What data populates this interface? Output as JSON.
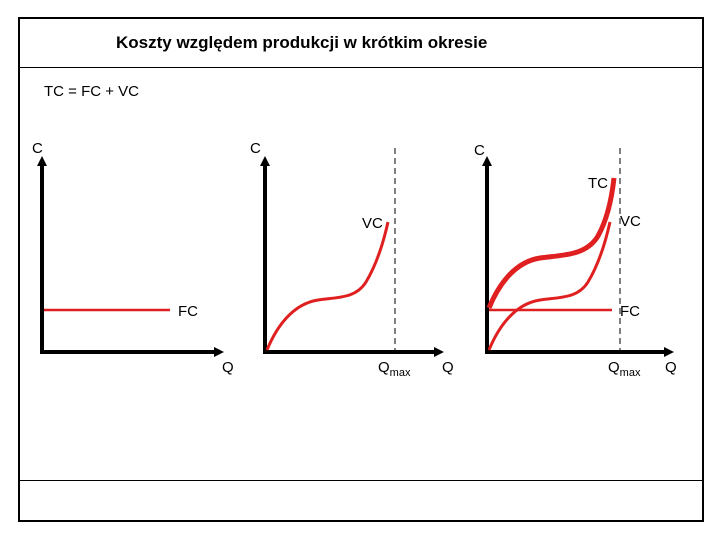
{
  "slide": {
    "title": "Koszty względem produkcji w krótkim okresie",
    "formula": "TC = FC + VC"
  },
  "colors": {
    "curve": "#e02020",
    "axis": "#000000",
    "dashed": "#000000"
  },
  "panels": [
    {
      "id": "fc",
      "y_axis_label": "C",
      "x_axis_label": "Q",
      "curves": [
        {
          "name": "FC"
        }
      ]
    },
    {
      "id": "vc",
      "y_axis_label": "C",
      "x_axis_label": "Q",
      "qmax_label": {
        "main": "Q",
        "sub": "max"
      },
      "curves": [
        {
          "name": "VC"
        }
      ]
    },
    {
      "id": "tc",
      "y_axis_label": "C",
      "x_axis_label": "Q",
      "qmax_label": {
        "main": "Q",
        "sub": "max"
      },
      "curves": [
        {
          "name": "TC"
        },
        {
          "name": "VC"
        },
        {
          "name": "FC"
        }
      ]
    }
  ]
}
